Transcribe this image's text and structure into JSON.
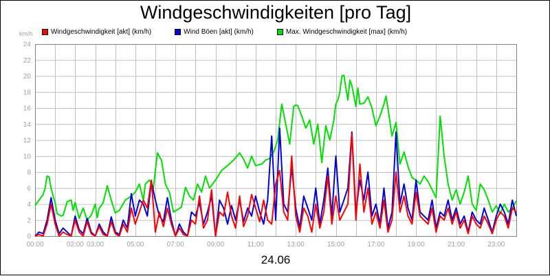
{
  "title": "Windgeschwindigkeiten [pro Tag]",
  "unit_label": "km/h",
  "date_label": "24.06",
  "colors": {
    "wind": "#ff0000",
    "boeen": "#0000dd",
    "max": "#00e000",
    "grid": "#c0c0c0"
  },
  "chart_data": {
    "type": "line",
    "title": "Windgeschwindigkeiten [pro Tag]",
    "xlabel": "24.06",
    "ylabel": "km/h",
    "grid": true,
    "legend": "top",
    "ylim": [
      0,
      24
    ],
    "xlim": [
      0,
      24
    ],
    "x_ticks": [
      "00:00",
      "02:00",
      "03:00",
      "05:00",
      "07:00",
      "09:00",
      "11:00",
      "13:00",
      "15:00",
      "17:00",
      "19:00",
      "21:00",
      "23:00"
    ],
    "x_tick_hours": [
      0,
      2,
      3,
      5,
      7,
      9,
      11,
      13,
      15,
      17,
      19,
      21,
      23
    ],
    "y_ticks": [
      0,
      2,
      4,
      6,
      8,
      10,
      12,
      14,
      16,
      18,
      20,
      22,
      24
    ],
    "series": [
      {
        "name": "Max. Windgeschwindigkeit [max] (km/h)",
        "color": "#00e000",
        "x": [
          0,
          0.2,
          0.4,
          0.5,
          0.6,
          0.7,
          0.8,
          0.9,
          1.0,
          1.1,
          1.3,
          1.4,
          1.6,
          1.8,
          1.9,
          2.0,
          2.2,
          2.4,
          2.6,
          2.8,
          3.0,
          3.1,
          3.2,
          3.3,
          3.4,
          3.6,
          3.8,
          4.0,
          4.2,
          4.5,
          4.8,
          5.0,
          5.2,
          5.4,
          5.5,
          5.7,
          5.9,
          6.1,
          6.3,
          6.5,
          6.7,
          6.9,
          7.3,
          7.5,
          7.7,
          7.9,
          8.1,
          8.3,
          8.5,
          8.7,
          9.0,
          9.3,
          9.6,
          9.9,
          10.2,
          10.4,
          10.6,
          10.8,
          11.0,
          11.3,
          11.5,
          11.7,
          11.9,
          12.1,
          12.3,
          12.5,
          12.7,
          12.9,
          13.0,
          13.1,
          13.3,
          13.5,
          13.7,
          13.9,
          14.1,
          14.3,
          14.5,
          14.7,
          14.9,
          15.0,
          15.1,
          15.2,
          15.3,
          15.4,
          15.5,
          15.6,
          15.7,
          15.8,
          15.9,
          16.0,
          16.1,
          16.2,
          16.4,
          16.6,
          16.8,
          17.0,
          17.2,
          17.4,
          17.5,
          17.6,
          17.8,
          18.0,
          18.2,
          18.4,
          18.6,
          18.8,
          19.0,
          19.2,
          19.4,
          19.6,
          19.8,
          20.0,
          20.2,
          20.4,
          20.6,
          20.8,
          21.0,
          21.2,
          21.4,
          21.6,
          21.8,
          22.0,
          22.2,
          22.4,
          22.6,
          22.8,
          23.0,
          23.2,
          23.4,
          23.6,
          23.8,
          24.0
        ],
        "values": [
          3.8,
          4.5,
          5.2,
          6.0,
          7.5,
          7.4,
          6.0,
          5.0,
          4.2,
          2.8,
          2.5,
          2.6,
          4.3,
          4.5,
          3.2,
          4.2,
          2.2,
          3.5,
          2.0,
          2.6,
          4.0,
          2.3,
          3.5,
          3.8,
          4.2,
          6.3,
          4.5,
          2.9,
          3.2,
          4.5,
          5.0,
          5.5,
          6.5,
          4.5,
          6.5,
          7.0,
          6.0,
          10.4,
          9.5,
          6.5,
          5.5,
          3.0,
          3.6,
          6.1,
          5.0,
          4.5,
          6.5,
          5.5,
          7.5,
          6.0,
          7.0,
          8.2,
          8.8,
          9.5,
          10.4,
          9.6,
          8.5,
          10.0,
          8.8,
          9.0,
          9.5,
          9.7,
          10.5,
          12.0,
          16.5,
          14.0,
          11.5,
          16.2,
          16.4,
          16.3,
          15.0,
          13.5,
          14.5,
          11.5,
          14.0,
          9.2,
          13.8,
          12.0,
          14.5,
          16.5,
          17.0,
          18.0,
          20.0,
          20.1,
          18.5,
          17.0,
          19.5,
          18.8,
          17.5,
          16.2,
          18.5,
          16.5,
          16.6,
          17.4,
          16.0,
          13.8,
          15.0,
          16.5,
          17.5,
          16.0,
          12.5,
          14.2,
          9.0,
          10.5,
          8.7,
          7.3,
          7.0,
          6.5,
          7.5,
          6.8,
          5.8,
          4.8,
          15.0,
          10.0,
          6.5,
          4.5,
          5.8,
          4.0,
          5.5,
          7.5,
          4.0,
          3.2,
          6.5,
          5.8,
          4.5,
          3.0,
          3.8,
          2.8,
          4.0,
          3.0,
          3.5,
          4.4
        ]
      },
      {
        "name": "Wind Böen [akt] (km/h)",
        "color": "#0000dd",
        "x": [
          0,
          0.2,
          0.4,
          0.6,
          0.8,
          1.0,
          1.2,
          1.4,
          1.6,
          1.8,
          2.0,
          2.2,
          2.4,
          2.6,
          2.8,
          3.0,
          3.2,
          3.4,
          3.6,
          3.8,
          4.0,
          4.2,
          4.4,
          4.6,
          4.8,
          5.0,
          5.2,
          5.4,
          5.6,
          5.8,
          6.0,
          6.2,
          6.4,
          6.6,
          6.8,
          7.0,
          7.2,
          7.4,
          7.6,
          7.8,
          8.0,
          8.2,
          8.4,
          8.6,
          8.8,
          9.0,
          9.2,
          9.4,
          9.6,
          9.8,
          10.0,
          10.2,
          10.4,
          10.6,
          10.8,
          11.0,
          11.2,
          11.4,
          11.6,
          11.8,
          12.0,
          12.2,
          12.4,
          12.6,
          12.8,
          13.0,
          13.2,
          13.4,
          13.6,
          13.8,
          14.0,
          14.2,
          14.4,
          14.6,
          14.8,
          15.0,
          15.2,
          15.4,
          15.6,
          15.8,
          16.0,
          16.2,
          16.4,
          16.6,
          16.8,
          17.0,
          17.2,
          17.4,
          17.6,
          17.8,
          18.0,
          18.2,
          18.4,
          18.6,
          18.8,
          19.0,
          19.2,
          19.4,
          19.6,
          19.8,
          20.0,
          20.2,
          20.4,
          20.6,
          20.8,
          21.0,
          21.2,
          21.4,
          21.6,
          21.8,
          22.0,
          22.2,
          22.4,
          22.6,
          22.8,
          23.0,
          23.2,
          23.4,
          23.6,
          23.8,
          24.0
        ],
        "values": [
          0.0,
          0.5,
          0.3,
          2.0,
          4.8,
          2.0,
          0.3,
          1.0,
          0.5,
          0.0,
          2.5,
          0.8,
          0.3,
          2.2,
          0.5,
          0.0,
          1.5,
          0.5,
          0.0,
          2.4,
          0.5,
          0.2,
          2.0,
          1.0,
          5.3,
          2.5,
          4.5,
          4.0,
          2.5,
          6.8,
          4.5,
          2.5,
          1.8,
          4.8,
          2.0,
          0.0,
          1.5,
          0.5,
          0.0,
          3.0,
          2.5,
          4.2,
          1.5,
          3.0,
          5.0,
          0.0,
          4.5,
          3.5,
          1.5,
          3.8,
          2.0,
          4.5,
          1.8,
          3.5,
          2.5,
          5.0,
          3.0,
          1.5,
          4.5,
          12.5,
          2.0,
          13.5,
          4.0,
          3.0,
          8.7,
          3.5,
          1.0,
          5.0,
          3.5,
          2.0,
          6.0,
          1.5,
          4.5,
          8.5,
          2.5,
          10.0,
          3.0,
          4.5,
          6.0,
          13.0,
          3.0,
          7.0,
          4.5,
          8.0,
          2.5,
          4.0,
          1.5,
          6.0,
          1.0,
          3.0,
          13.0,
          4.0,
          6.5,
          3.5,
          2.0,
          7.0,
          3.0,
          2.5,
          2.0,
          4.5,
          1.0,
          3.0,
          2.5,
          4.5,
          2.0,
          3.5,
          1.5,
          2.5,
          0.5,
          3.0,
          2.0,
          1.5,
          3.5,
          2.0,
          0.5,
          2.5,
          4.0,
          3.0,
          1.5,
          4.5,
          2.5
        ]
      },
      {
        "name": "Windgeschwindigkeit [akt] (km/h)",
        "color": "#ff0000",
        "x": [
          0,
          0.2,
          0.4,
          0.6,
          0.8,
          1.0,
          1.2,
          1.4,
          1.6,
          1.8,
          2.0,
          2.2,
          2.4,
          2.6,
          2.8,
          3.0,
          3.2,
          3.4,
          3.6,
          3.8,
          4.0,
          4.2,
          4.4,
          4.6,
          4.8,
          5.0,
          5.2,
          5.4,
          5.6,
          5.8,
          6.0,
          6.2,
          6.4,
          6.6,
          6.8,
          7.0,
          7.2,
          7.4,
          7.6,
          7.8,
          8.0,
          8.2,
          8.4,
          8.6,
          8.8,
          9.0,
          9.2,
          9.4,
          9.6,
          9.8,
          10.0,
          10.2,
          10.4,
          10.6,
          10.8,
          11.0,
          11.2,
          11.4,
          11.6,
          11.8,
          12.0,
          12.2,
          12.4,
          12.6,
          12.8,
          13.0,
          13.2,
          13.4,
          13.6,
          13.8,
          14.0,
          14.2,
          14.4,
          14.6,
          14.8,
          15.0,
          15.2,
          15.4,
          15.6,
          15.8,
          16.0,
          16.2,
          16.4,
          16.6,
          16.8,
          17.0,
          17.2,
          17.4,
          17.6,
          17.8,
          18.0,
          18.2,
          18.4,
          18.6,
          18.8,
          19.0,
          19.2,
          19.4,
          19.6,
          19.8,
          20.0,
          20.2,
          20.4,
          20.6,
          20.8,
          21.0,
          21.2,
          21.4,
          21.6,
          21.8,
          22.0,
          22.2,
          22.4,
          22.6,
          22.8,
          23.0,
          23.2,
          23.4,
          23.6,
          23.8,
          24.0
        ],
        "values": [
          0.0,
          0.2,
          0.0,
          1.5,
          4.0,
          1.5,
          0.0,
          0.5,
          0.2,
          0.0,
          2.0,
          0.5,
          0.0,
          1.8,
          0.3,
          0.0,
          1.2,
          0.2,
          0.0,
          1.8,
          0.3,
          0.0,
          1.5,
          0.5,
          3.5,
          1.5,
          3.0,
          4.5,
          3.5,
          7.0,
          0.5,
          3.0,
          1.2,
          3.5,
          1.5,
          0.0,
          1.0,
          0.2,
          0.0,
          2.0,
          1.5,
          5.0,
          1.0,
          2.0,
          5.8,
          0.0,
          3.0,
          2.5,
          5.5,
          2.5,
          1.0,
          5.0,
          1.2,
          2.5,
          5.2,
          3.5,
          1.8,
          4.5,
          2.0,
          1.5,
          6.5,
          8.2,
          3.0,
          2.0,
          10.0,
          2.5,
          0.5,
          3.5,
          2.5,
          0.5,
          4.0,
          1.0,
          3.0,
          7.5,
          1.5,
          5.0,
          2.0,
          3.0,
          4.0,
          12.8,
          2.0,
          9.0,
          3.0,
          6.0,
          1.5,
          3.0,
          1.0,
          4.5,
          0.5,
          2.0,
          8.0,
          3.0,
          5.0,
          2.5,
          1.5,
          5.5,
          2.5,
          2.0,
          1.5,
          3.5,
          0.5,
          2.5,
          2.0,
          3.5,
          1.5,
          3.0,
          1.0,
          2.0,
          0.3,
          2.5,
          1.5,
          1.0,
          2.5,
          1.5,
          0.3,
          2.0,
          3.0,
          2.5,
          1.0,
          3.5,
          3.0
        ]
      }
    ]
  },
  "legend_items": [
    {
      "label": "Windgeschwindigkeit [akt] (km/h)",
      "color": "#ff0000"
    },
    {
      "label": "Wind Böen [akt] (km/h)",
      "color": "#0000dd"
    },
    {
      "label": "Max. Windgeschwindigkeit [max] (km/h)",
      "color": "#00e000"
    }
  ]
}
